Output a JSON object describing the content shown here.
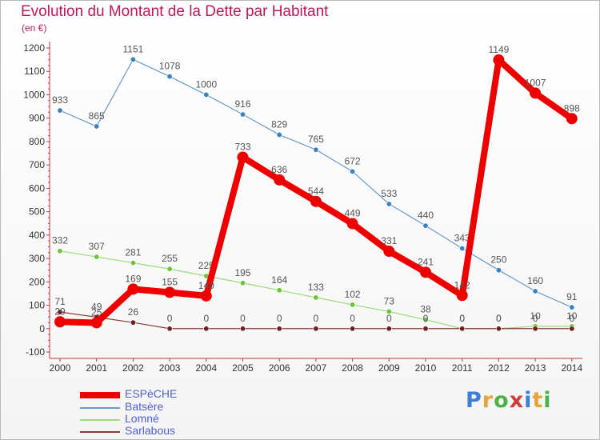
{
  "title": "Evolution du Montant de la Dette par Habitant",
  "subtitle": "(en €)",
  "logo": {
    "text": "Proxiti",
    "colors": [
      "#3b7fd4",
      "#e8a33a",
      "#4fb04a",
      "#d33b3b",
      "#3b7fd4",
      "#e8a33a",
      "#4fb04a"
    ]
  },
  "chart_data": {
    "type": "line",
    "title": "Evolution du Montant de la Dette par Habitant",
    "subtitle": "(en €)",
    "x": [
      "2000",
      "2001",
      "2002",
      "2003",
      "2004",
      "2005",
      "2006",
      "2007",
      "2008",
      "2009",
      "2010",
      "2011",
      "2012",
      "2013",
      "2014"
    ],
    "ylim": [
      -100,
      1200
    ],
    "yticks": [
      "-100",
      "0",
      "100",
      "200",
      "300",
      "400",
      "500",
      "600",
      "700",
      "800",
      "900",
      "1000",
      "1100",
      "1200"
    ],
    "grid": false,
    "legend_position": "bottom-left",
    "series": [
      {
        "name": "Batsère",
        "color": "#6699cc",
        "marker": "#3b82c4",
        "values": [
          933,
          865,
          1151,
          1078,
          1000,
          916,
          829,
          765,
          672,
          533,
          440,
          343,
          250,
          160,
          91
        ],
        "labels": [
          "933",
          "865",
          "1151",
          "1078",
          "1000",
          "916",
          "829",
          "765",
          "672",
          "533",
          "440",
          "343",
          "250",
          "160",
          "91"
        ]
      },
      {
        "name": "Lomné",
        "color": "#99dd77",
        "marker": "#6cc43c",
        "values": [
          332,
          307,
          281,
          255,
          225,
          195,
          164,
          133,
          102,
          73,
          38,
          0,
          0,
          10,
          10
        ],
        "labels": [
          "332",
          "307",
          "281",
          "255",
          "225",
          "195",
          "164",
          "133",
          "102",
          "73",
          "38",
          "0",
          "0",
          "10",
          "10"
        ]
      },
      {
        "name": "Sarlabous",
        "color": "#8b3a3a",
        "marker": "#6e1f1f",
        "values": [
          71,
          49,
          26,
          0,
          0,
          0,
          0,
          0,
          0,
          0,
          0,
          0,
          0,
          0,
          0
        ],
        "labels": [
          "71",
          "49",
          "26",
          "0",
          "0",
          "0",
          "0",
          "0",
          "0",
          "0",
          "0",
          "0",
          "0",
          "0",
          "0"
        ]
      },
      {
        "name": "ESPèCHE",
        "color": "#ee0000",
        "marker": "#ee0000",
        "values": [
          29,
          25,
          169,
          155,
          140,
          733,
          636,
          544,
          449,
          331,
          241,
          142,
          1149,
          1007,
          898
        ],
        "labels": [
          "29",
          "25",
          "169",
          "155",
          "140",
          "733",
          "636",
          "544",
          "449",
          "331",
          "241",
          "142",
          "1149",
          "1007",
          "898"
        ]
      }
    ],
    "legend": [
      {
        "name": "ESPèCHE",
        "color": "#ee0000"
      },
      {
        "name": "Batsère",
        "color": "#6699cc"
      },
      {
        "name": "Lomné",
        "color": "#99dd77"
      },
      {
        "name": "Sarlabous",
        "color": "#8b3a3a"
      }
    ]
  }
}
